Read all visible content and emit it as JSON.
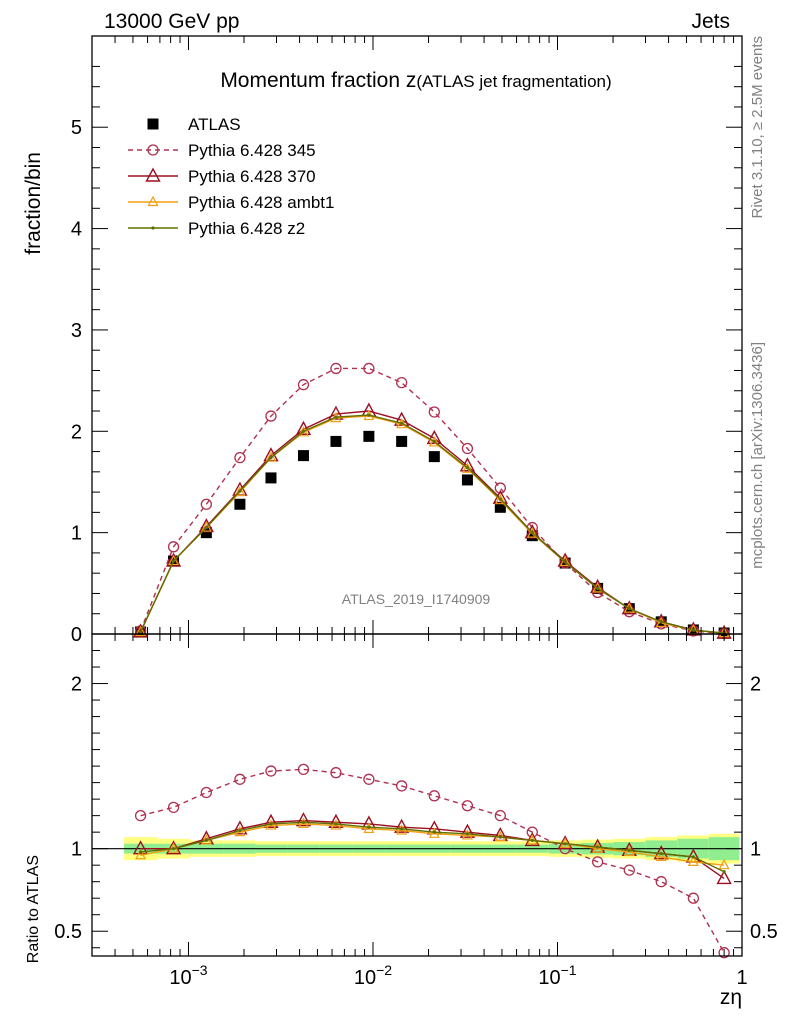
{
  "header": {
    "left": "13000 GeV pp",
    "right": "Jets"
  },
  "side_text": {
    "rivet": "Rivet 3.1.10, ≥ 2.5M events",
    "source": "mcplots.cern.ch [arXiv:1306.3436]"
  },
  "colors": {
    "ATLAS": "#000000",
    "Pythia 6.428 345": "#b03050",
    "Pythia 6.428 370": "#9a1020",
    "Pythia 6.428 ambt1": "#f0a010",
    "Pythia 6.428 z2": "#607000",
    "band_inner": "#90ee90",
    "band_outer": "#ffff80"
  },
  "chart_data": [
    {
      "type": "line",
      "title": "Momentum fraction z",
      "title_sub": "(ATLAS jet fragmentation)",
      "ylabel": "fraction/bin",
      "watermark": "ATLAS_2019_I1740909",
      "x_scale": "log",
      "xlim": [
        0.0003,
        1
      ],
      "ylim": [
        0,
        5.9
      ],
      "y_ticks": [
        "0",
        "1",
        "2",
        "3",
        "4",
        "5"
      ],
      "legend_position": "top-left",
      "x": [
        0.00055,
        0.00083,
        0.00125,
        0.0019,
        0.0028,
        0.0042,
        0.0063,
        0.0095,
        0.0143,
        0.0215,
        0.0325,
        0.049,
        0.073,
        0.11,
        0.165,
        0.245,
        0.365,
        0.545,
        0.8
      ],
      "series": [
        {
          "name": "ATLAS",
          "style": "square",
          "values": [
            0.02,
            0.72,
            1.0,
            1.28,
            1.54,
            1.76,
            1.9,
            1.95,
            1.9,
            1.75,
            1.52,
            1.25,
            0.97,
            0.7,
            0.45,
            0.25,
            0.12,
            0.04,
            0.01
          ]
        },
        {
          "name": "Pythia 6.428 345",
          "style": "circle-dashed",
          "values": [
            0.03,
            0.86,
            1.28,
            1.74,
            2.15,
            2.46,
            2.62,
            2.62,
            2.48,
            2.19,
            1.83,
            1.44,
            1.05,
            0.7,
            0.41,
            0.22,
            0.1,
            0.03,
            0.004
          ]
        },
        {
          "name": "Pythia 6.428 370",
          "style": "triangle",
          "values": [
            0.02,
            0.72,
            1.06,
            1.42,
            1.76,
            2.02,
            2.17,
            2.2,
            2.11,
            1.93,
            1.66,
            1.34,
            1.0,
            0.72,
            0.46,
            0.25,
            0.12,
            0.04,
            0.008
          ]
        },
        {
          "name": "Pythia 6.428 ambt1",
          "style": "triangle-small",
          "values": [
            0.02,
            0.72,
            1.05,
            1.4,
            1.74,
            1.99,
            2.13,
            2.15,
            2.07,
            1.89,
            1.63,
            1.32,
            0.99,
            0.71,
            0.45,
            0.25,
            0.11,
            0.037,
            0.009
          ]
        },
        {
          "name": "Pythia 6.428 z2",
          "style": "dot",
          "values": [
            0.02,
            0.72,
            1.05,
            1.41,
            1.74,
            2.0,
            2.14,
            2.16,
            2.08,
            1.9,
            1.64,
            1.33,
            1.0,
            0.71,
            0.45,
            0.25,
            0.12,
            0.038,
            0.009
          ]
        }
      ]
    },
    {
      "type": "line",
      "ylabel": "Ratio to ATLAS",
      "xlabel": "zη",
      "x_scale": "log",
      "xlim": [
        0.0003,
        1
      ],
      "ylim": [
        0.35,
        2.3
      ],
      "x_ticks": [
        "10",
        "10",
        "10",
        "1"
      ],
      "x_tick_exponents": [
        "−3",
        "−2",
        "−1",
        ""
      ],
      "y_ticks": [
        "0.5",
        "1",
        "2"
      ],
      "x": [
        0.00055,
        0.00083,
        0.00125,
        0.0019,
        0.0028,
        0.0042,
        0.0063,
        0.0095,
        0.0143,
        0.0215,
        0.0325,
        0.049,
        0.073,
        0.11,
        0.165,
        0.245,
        0.365,
        0.545,
        0.8
      ],
      "band_inner": [
        0.03,
        0.03,
        0.03,
        0.03,
        0.025,
        0.025,
        0.025,
        0.025,
        0.025,
        0.025,
        0.025,
        0.025,
        0.025,
        0.03,
        0.035,
        0.04,
        0.05,
        0.06,
        0.07
      ],
      "band_outer": [
        0.07,
        0.06,
        0.05,
        0.05,
        0.045,
        0.045,
        0.045,
        0.045,
        0.045,
        0.045,
        0.045,
        0.045,
        0.045,
        0.05,
        0.055,
        0.06,
        0.07,
        0.08,
        0.09
      ],
      "series": [
        {
          "name": "Pythia 6.428 345",
          "style": "circle-dashed",
          "values": [
            1.2,
            1.25,
            1.34,
            1.42,
            1.47,
            1.48,
            1.46,
            1.42,
            1.38,
            1.32,
            1.26,
            1.2,
            1.1,
            1.0,
            0.92,
            0.87,
            0.8,
            0.7,
            0.37
          ]
        },
        {
          "name": "Pythia 6.428 370",
          "style": "triangle",
          "values": [
            1.0,
            1.0,
            1.06,
            1.12,
            1.16,
            1.17,
            1.16,
            1.15,
            1.13,
            1.12,
            1.1,
            1.08,
            1.05,
            1.03,
            1.01,
            0.99,
            0.97,
            0.95,
            0.82
          ]
        },
        {
          "name": "Pythia 6.428 ambt1",
          "style": "triangle-small",
          "values": [
            0.96,
            1.0,
            1.05,
            1.1,
            1.14,
            1.15,
            1.14,
            1.12,
            1.11,
            1.09,
            1.08,
            1.07,
            1.05,
            1.03,
            1.0,
            0.98,
            0.95,
            0.92,
            0.9
          ]
        },
        {
          "name": "Pythia 6.428 z2",
          "style": "dot",
          "values": [
            0.98,
            1.0,
            1.05,
            1.11,
            1.15,
            1.16,
            1.15,
            1.13,
            1.12,
            1.1,
            1.09,
            1.07,
            1.05,
            1.03,
            1.01,
            0.99,
            0.97,
            0.95,
            0.86
          ]
        }
      ]
    }
  ]
}
